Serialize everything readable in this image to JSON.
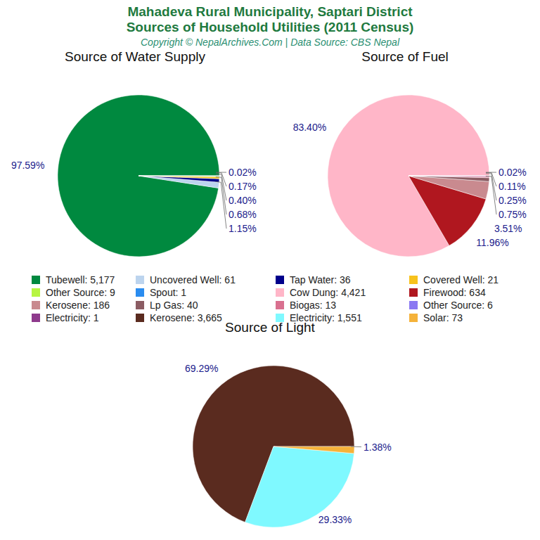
{
  "title": "Mahadeva Rural Municipality, Saptari District",
  "subtitle": "Sources of Household Utilities (2011 Census)",
  "caption": "Copyright © NepalArchives.Com | Data Source: CBS Nepal",
  "chart_data": [
    {
      "type": "pie",
      "title": "Source of Water Supply",
      "categories": [
        "Tubewell: 5,177",
        "Uncovered Well: 61",
        "Tap Water: 36",
        "Covered Well: 21",
        "Other Source: 9",
        "Spout: 1"
      ],
      "values": [
        97.59,
        1.15,
        0.68,
        0.4,
        0.17,
        0.02
      ],
      "value_labels": [
        "97.59%",
        "1.15%",
        "0.68%",
        "0.40%",
        "0.17%",
        "0.02%"
      ],
      "colors": [
        "#00893f",
        "#bcd4ee",
        "#00008b",
        "#f7c21c",
        "#b7f542",
        "#2a8cf0"
      ],
      "data_labels": true
    },
    {
      "type": "pie",
      "title": "Source of Fuel",
      "categories": [
        "Cow Dung: 4,421",
        "Firewood: 634",
        "Kerosene: 186",
        "Lp Gas: 40",
        "Biogas: 13",
        "Other Source: 6",
        "Electricity: 1"
      ],
      "values": [
        83.4,
        11.96,
        3.51,
        0.75,
        0.25,
        0.11,
        0.02
      ],
      "value_labels": [
        "83.40%",
        "11.96%",
        "3.51%",
        "0.75%",
        "0.25%",
        "0.11%",
        "0.02%"
      ],
      "colors": [
        "#ffb6c8",
        "#b0171f",
        "#c98a8f",
        "#8b5c63",
        "#d9708f",
        "#8a78f2",
        "#8e3a8c"
      ],
      "data_labels": true
    },
    {
      "type": "pie",
      "title": "Source of Light",
      "categories": [
        "Kerosene: 3,665",
        "Electricity: 1,551",
        "Solar: 73"
      ],
      "values": [
        69.29,
        29.33,
        1.38
      ],
      "value_labels": [
        "69.29%",
        "29.33%",
        "1.38%"
      ],
      "colors": [
        "#5a2b1f",
        "#7ff9ff",
        "#f5b23a"
      ],
      "data_labels": true
    }
  ]
}
